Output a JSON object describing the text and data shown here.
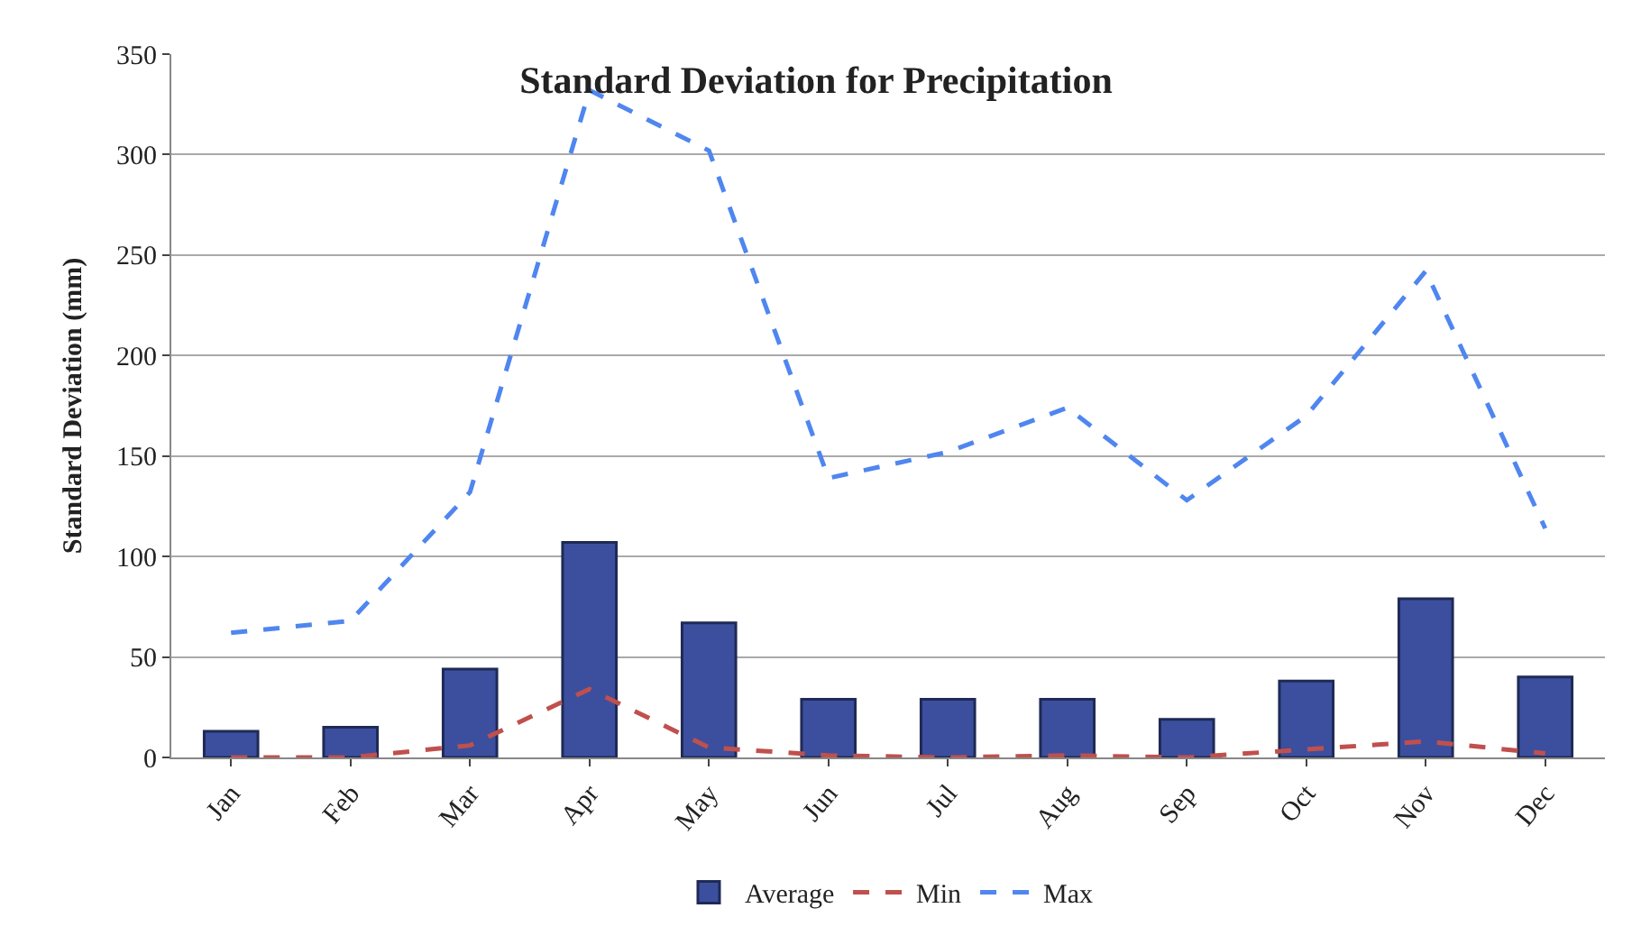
{
  "chart_data": {
    "type": "bar",
    "title": "Standard Deviation for Precipitation",
    "ylabel": "Standard Deviation (mm)",
    "categories": [
      "Jan",
      "Feb",
      "Mar",
      "Apr",
      "May",
      "Jun",
      "Jul",
      "Aug",
      "Sep",
      "Oct",
      "Nov",
      "Dec"
    ],
    "series": [
      {
        "name": "Average",
        "color": "#3c4f9e",
        "values": [
          13,
          15,
          44,
          107,
          67,
          29,
          29,
          29,
          19,
          38,
          79,
          40
        ]
      },
      {
        "name": "Min",
        "type": "line",
        "color": "#c0504d",
        "line_style": "dashed",
        "values": [
          0,
          0,
          6,
          34,
          5,
          1,
          0,
          1,
          0,
          4,
          8,
          2
        ]
      },
      {
        "name": "Max",
        "type": "line",
        "color": "#4f86f0",
        "line_style": "dashed",
        "values": [
          62,
          68,
          132,
          332,
          302,
          139,
          152,
          174,
          128,
          170,
          242,
          114
        ]
      }
    ],
    "ylim": [
      0,
      350
    ],
    "yticks": [
      0,
      50,
      100,
      150,
      200,
      250,
      300,
      350
    ],
    "grid": "y",
    "legend": "bottom",
    "marker": "none"
  }
}
